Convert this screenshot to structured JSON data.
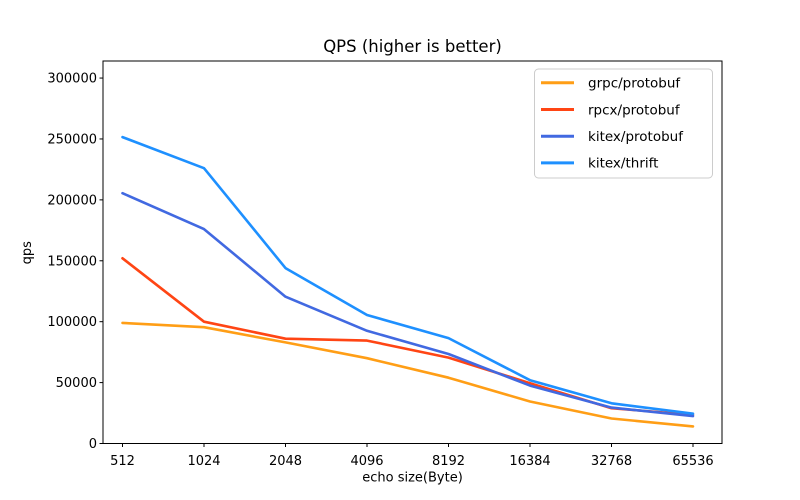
{
  "chart_data": {
    "type": "line",
    "title": "QPS (higher is better)",
    "xlabel": "echo size(Byte)",
    "ylabel": "qps",
    "categories": [
      "512",
      "1024",
      "2048",
      "4096",
      "8192",
      "16384",
      "32768",
      "65536"
    ],
    "yticks": [
      0,
      50000,
      100000,
      150000,
      200000,
      250000,
      300000
    ],
    "ylim": [
      0,
      314000
    ],
    "grid": false,
    "legend_position": "upper right",
    "spine_color": "#000000",
    "legend_border_color": "#cccccc",
    "series": [
      {
        "name": "grpc/protobuf",
        "color": "#FF9E16",
        "values": [
          99000,
          95500,
          83000,
          70000,
          54000,
          34500,
          20500,
          14000
        ]
      },
      {
        "name": "rpcx/protobuf",
        "color": "#FF4514",
        "values": [
          152000,
          100000,
          86000,
          84500,
          70500,
          49500,
          29000,
          23500
        ]
      },
      {
        "name": "kitex/protobuf",
        "color": "#4169E1",
        "values": [
          205500,
          176000,
          120500,
          92500,
          73500,
          47500,
          29500,
          22500
        ]
      },
      {
        "name": "kitex/thrift",
        "color": "#1E90FF",
        "values": [
          251500,
          226000,
          144000,
          105500,
          86500,
          52000,
          33000,
          24500
        ]
      }
    ]
  }
}
